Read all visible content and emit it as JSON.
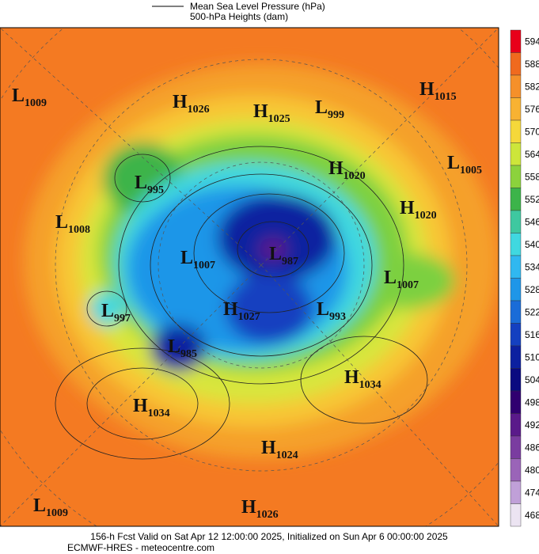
{
  "header": {
    "legend": [
      "Mean Sea Level Pressure (hPa)",
      "500-hPa Heights (dam)"
    ]
  },
  "map": {
    "centers": [
      {
        "type": "L",
        "value": 1009
      },
      {
        "type": "H",
        "value": 1026
      },
      {
        "type": "H",
        "value": 1025
      },
      {
        "type": "L",
        "value": 999
      },
      {
        "type": "H",
        "value": 1015
      },
      {
        "type": "L",
        "value": 1005
      },
      {
        "type": "H",
        "value": 1020
      },
      {
        "type": "L",
        "value": 995
      },
      {
        "type": "L",
        "value": 1008
      },
      {
        "type": "H",
        "value": 1020
      },
      {
        "type": "L",
        "value": 1007
      },
      {
        "type": "L",
        "value": 987
      },
      {
        "type": "L",
        "value": 1007
      },
      {
        "type": "L",
        "value": 997
      },
      {
        "type": "H",
        "value": 1027
      },
      {
        "type": "L",
        "value": 993
      },
      {
        "type": "L",
        "value": 985
      },
      {
        "type": "H",
        "value": 1034
      },
      {
        "type": "H",
        "value": 1034
      },
      {
        "type": "H",
        "value": 1024
      },
      {
        "type": "L",
        "value": 1009
      },
      {
        "type": "H",
        "value": 1026
      }
    ]
  },
  "colorbar": {
    "levels": [
      {
        "value": 594,
        "color": "#e8001a"
      },
      {
        "value": 588,
        "color": "#f06a1e"
      },
      {
        "value": 582,
        "color": "#f5902a"
      },
      {
        "value": 576,
        "color": "#f8b232"
      },
      {
        "value": 570,
        "color": "#f5d83a"
      },
      {
        "value": 564,
        "color": "#cde63a"
      },
      {
        "value": 558,
        "color": "#8cd23c"
      },
      {
        "value": 552,
        "color": "#3cb44a"
      },
      {
        "value": 546,
        "color": "#3ec8a0"
      },
      {
        "value": 540,
        "color": "#40d8e0"
      },
      {
        "value": 534,
        "color": "#30b8f0"
      },
      {
        "value": 528,
        "color": "#1e96e8"
      },
      {
        "value": 522,
        "color": "#1a6cd8"
      },
      {
        "value": 516,
        "color": "#1440c0"
      },
      {
        "value": 510,
        "color": "#0c20a0"
      },
      {
        "value": 504,
        "color": "#0a0a80"
      },
      {
        "value": 498,
        "color": "#300070"
      },
      {
        "value": 492,
        "color": "#5a1a8a"
      },
      {
        "value": 486,
        "color": "#7a3ca0"
      },
      {
        "value": 480,
        "color": "#9a64b8"
      },
      {
        "value": 474,
        "color": "#c0a0d8"
      },
      {
        "value": 468,
        "color": "#ece4f2"
      }
    ]
  },
  "footer": [
    "156-h Fcst Valid on Sat Apr 12 12:00:00 2025, Initialized on Sun Apr  6 00:00:00 2025",
    "ECMWF-HRES - meteocentre.com"
  ]
}
